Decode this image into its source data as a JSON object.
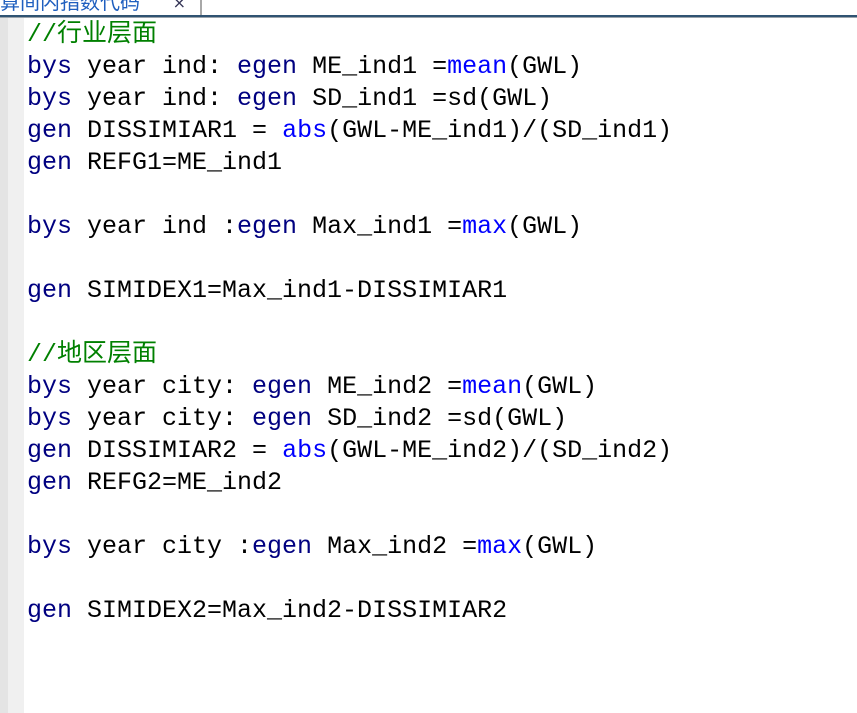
{
  "tab": {
    "title": "算间内指数代码",
    "close": "×"
  },
  "colors": {
    "keyword": "#000080",
    "function": "#0000ff",
    "comment": "#008000",
    "text": "#000000"
  },
  "lines": [
    [
      {
        "t": "//行业层面",
        "c": "cm"
      }
    ],
    [
      {
        "t": "bys",
        "c": "kw"
      },
      {
        "t": " year ind: "
      },
      {
        "t": "egen",
        "c": "kw"
      },
      {
        "t": " ME_ind1 ="
      },
      {
        "t": "mean",
        "c": "fn"
      },
      {
        "t": "(GWL)"
      }
    ],
    [
      {
        "t": "bys",
        "c": "kw"
      },
      {
        "t": " year ind: "
      },
      {
        "t": "egen",
        "c": "kw"
      },
      {
        "t": " SD_ind1 =sd(GWL)"
      }
    ],
    [
      {
        "t": "gen",
        "c": "kw"
      },
      {
        "t": " DISSIMIAR1 = "
      },
      {
        "t": "abs",
        "c": "fn"
      },
      {
        "t": "(GWL-ME_ind1)/(SD_ind1)"
      }
    ],
    [
      {
        "t": "gen",
        "c": "kw"
      },
      {
        "t": " REFG1=ME_ind1"
      }
    ],
    [],
    [
      {
        "t": "bys",
        "c": "kw"
      },
      {
        "t": " year ind :"
      },
      {
        "t": "egen",
        "c": "kw"
      },
      {
        "t": " Max_ind1 ="
      },
      {
        "t": "max",
        "c": "fn"
      },
      {
        "t": "(GWL)"
      }
    ],
    [],
    [
      {
        "t": "gen",
        "c": "kw"
      },
      {
        "t": " SIMIDEX1=Max_ind1-DISSIMIAR1"
      }
    ],
    [],
    [
      {
        "t": "//地区层面",
        "c": "cm"
      }
    ],
    [
      {
        "t": "bys",
        "c": "kw"
      },
      {
        "t": " year city: "
      },
      {
        "t": "egen",
        "c": "kw"
      },
      {
        "t": " ME_ind2 ="
      },
      {
        "t": "mean",
        "c": "fn"
      },
      {
        "t": "(GWL)"
      }
    ],
    [
      {
        "t": "bys",
        "c": "kw"
      },
      {
        "t": " year city: "
      },
      {
        "t": "egen",
        "c": "kw"
      },
      {
        "t": " SD_ind2 =sd(GWL)"
      }
    ],
    [
      {
        "t": "gen",
        "c": "kw"
      },
      {
        "t": " DISSIMIAR2 = "
      },
      {
        "t": "abs",
        "c": "fn"
      },
      {
        "t": "(GWL-ME_ind2)/(SD_ind2)"
      }
    ],
    [
      {
        "t": "gen",
        "c": "kw"
      },
      {
        "t": " REFG2=ME_ind2"
      }
    ],
    [],
    [
      {
        "t": "bys",
        "c": "kw"
      },
      {
        "t": " year city :"
      },
      {
        "t": "egen",
        "c": "kw"
      },
      {
        "t": " Max_ind2 ="
      },
      {
        "t": "max",
        "c": "fn"
      },
      {
        "t": "(GWL)"
      }
    ],
    [],
    [
      {
        "t": "gen",
        "c": "kw"
      },
      {
        "t": " SIMIDEX2=Max_ind2-DISSIMIAR2"
      }
    ]
  ]
}
